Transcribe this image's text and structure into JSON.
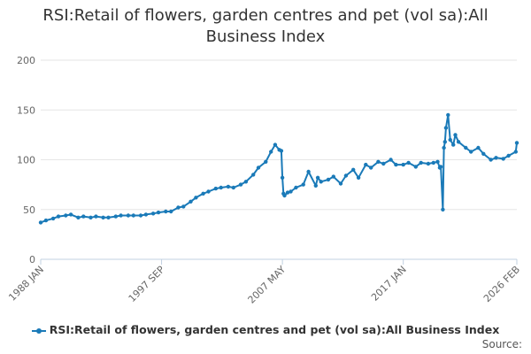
{
  "chart_data": {
    "type": "line",
    "title": "RSI:Retail of flowers, garden centres and pet (vol sa):All Business Index",
    "xlabel": "",
    "ylabel": "",
    "ylim": [
      0,
      200
    ],
    "y_ticks": [
      0,
      50,
      100,
      150,
      200
    ],
    "x_range": [
      "1988 JAN",
      "2026 FEB"
    ],
    "x_tick_labels": [
      "1988 JAN",
      "1997 SEP",
      "2007 MAY",
      "2017 JAN",
      "2026 FEB"
    ],
    "grid": true,
    "legend_position": "bottom",
    "source_label": "Source:",
    "series": [
      {
        "name": "RSI:Retail of flowers, garden centres and pet (vol sa):All Business Index",
        "color": "#1a7ab8",
        "x": [
          "1988-01",
          "1988-06",
          "1989-01",
          "1989-06",
          "1990-01",
          "1990-06",
          "1991-01",
          "1991-06",
          "1992-01",
          "1992-06",
          "1993-01",
          "1993-06",
          "1994-01",
          "1994-06",
          "1995-01",
          "1995-06",
          "1996-01",
          "1996-06",
          "1997-01",
          "1997-06",
          "1998-01",
          "1998-06",
          "1999-01",
          "1999-06",
          "2000-01",
          "2000-06",
          "2001-01",
          "2001-06",
          "2002-01",
          "2002-06",
          "2003-01",
          "2003-06",
          "2004-01",
          "2004-06",
          "2005-01",
          "2005-06",
          "2006-01",
          "2006-06",
          "2006-10",
          "2007-02",
          "2007-04",
          "2007-05",
          "2007-06",
          "2007-07",
          "2007-10",
          "2008-01",
          "2008-06",
          "2009-01",
          "2009-06",
          "2010-01",
          "2010-03",
          "2010-06",
          "2011-01",
          "2011-06",
          "2012-01",
          "2012-06",
          "2013-01",
          "2013-06",
          "2014-01",
          "2014-06",
          "2015-01",
          "2015-06",
          "2016-01",
          "2016-06",
          "2017-01",
          "2017-06",
          "2018-01",
          "2018-06",
          "2019-01",
          "2019-06",
          "2019-10",
          "2019-12",
          "2020-01",
          "2020-03",
          "2020-04",
          "2020-05",
          "2020-06",
          "2020-08",
          "2020-10",
          "2021-01",
          "2021-03",
          "2021-06",
          "2022-01",
          "2022-06",
          "2023-01",
          "2023-06",
          "2024-01",
          "2024-06",
          "2025-01",
          "2025-06",
          "2026-01",
          "2026-02"
        ],
        "values": [
          37,
          39,
          41,
          43,
          44,
          45,
          42,
          43,
          42,
          43,
          42,
          42,
          43,
          44,
          44,
          44,
          44,
          45,
          46,
          47,
          48,
          48,
          52,
          53,
          58,
          62,
          66,
          68,
          71,
          72,
          73,
          72,
          75,
          78,
          85,
          92,
          98,
          108,
          115,
          110,
          109,
          82,
          66,
          64,
          67,
          68,
          72,
          75,
          88,
          74,
          82,
          78,
          80,
          83,
          76,
          84,
          90,
          82,
          95,
          92,
          98,
          96,
          100,
          95,
          95,
          97,
          93,
          97,
          96,
          97,
          98,
          92,
          93,
          50,
          112,
          118,
          132,
          145,
          120,
          115,
          125,
          118,
          112,
          108,
          112,
          106,
          100,
          102,
          101,
          104,
          108,
          117
        ]
      }
    ]
  }
}
